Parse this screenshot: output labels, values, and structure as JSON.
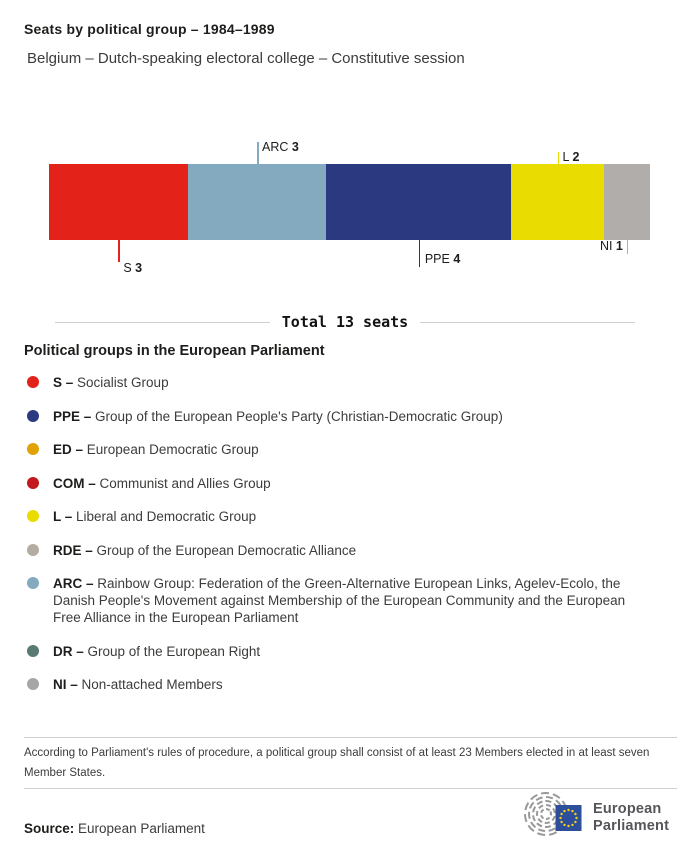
{
  "header": {
    "title": "Seats by political group – 1984–1989",
    "subtitle": "Belgium – Dutch-speaking electoral college – Constitutive session"
  },
  "chart_data": {
    "type": "bar",
    "orientation": "horizontal-stacked",
    "title": "Seats by political group – 1984–1989",
    "subtitle": "Belgium – Dutch-speaking electoral college – Constitutive session",
    "categories": [
      "S",
      "ARC",
      "PPE",
      "L",
      "NI"
    ],
    "values": [
      3,
      3,
      4,
      2,
      1
    ],
    "total_seats": 13,
    "total_label": "Total 13 seats",
    "segments": [
      {
        "code": "S",
        "seats": 3,
        "color": "#e32219"
      },
      {
        "code": "ARC",
        "seats": 3,
        "color": "#84aabf"
      },
      {
        "code": "PPE",
        "seats": 4,
        "color": "#2b3a80"
      },
      {
        "code": "L",
        "seats": 2,
        "color": "#e9dc00"
      },
      {
        "code": "NI",
        "seats": 1,
        "color": "#b1adaa"
      }
    ]
  },
  "legend": {
    "heading": "Political groups in the European Parliament",
    "items": [
      {
        "code": "S –",
        "name": "Socialist Group",
        "color": "#e32219"
      },
      {
        "code": "PPE –",
        "name": "Group of the European People's Party (Christian-Democratic Group)",
        "color": "#2b3a80"
      },
      {
        "code": "ED –",
        "name": "European Democratic Group",
        "color": "#e0a307"
      },
      {
        "code": "COM –",
        "name": "Communist and Allies Group",
        "color": "#c2191c"
      },
      {
        "code": "L –",
        "name": "Liberal and Democratic Group",
        "color": "#e9dc00"
      },
      {
        "code": "RDE –",
        "name": "Group of the European Democratic Alliance",
        "color": "#b3aca2"
      },
      {
        "code": "ARC –",
        "name": "Rainbow Group: Federation of the Green-Alternative European Links, Agelev-Ecolo, the Danish People's Movement against Membership of the European Community and the European Free Alliance in the European Parliament",
        "color": "#84aabf"
      },
      {
        "code": "DR –",
        "name": "Group of the European Right",
        "color": "#587a72"
      },
      {
        "code": "NI –",
        "name": "Non-attached Members",
        "color": "#a6a6a6"
      }
    ]
  },
  "footer": {
    "note": "According to Parliament's rules of procedure, a political group shall consist of at least 23 Members elected in at least seven Member States.",
    "source_label": "Source:",
    "source_value": "European Parliament",
    "logo_line1": "European",
    "logo_line2": "Parliament"
  }
}
